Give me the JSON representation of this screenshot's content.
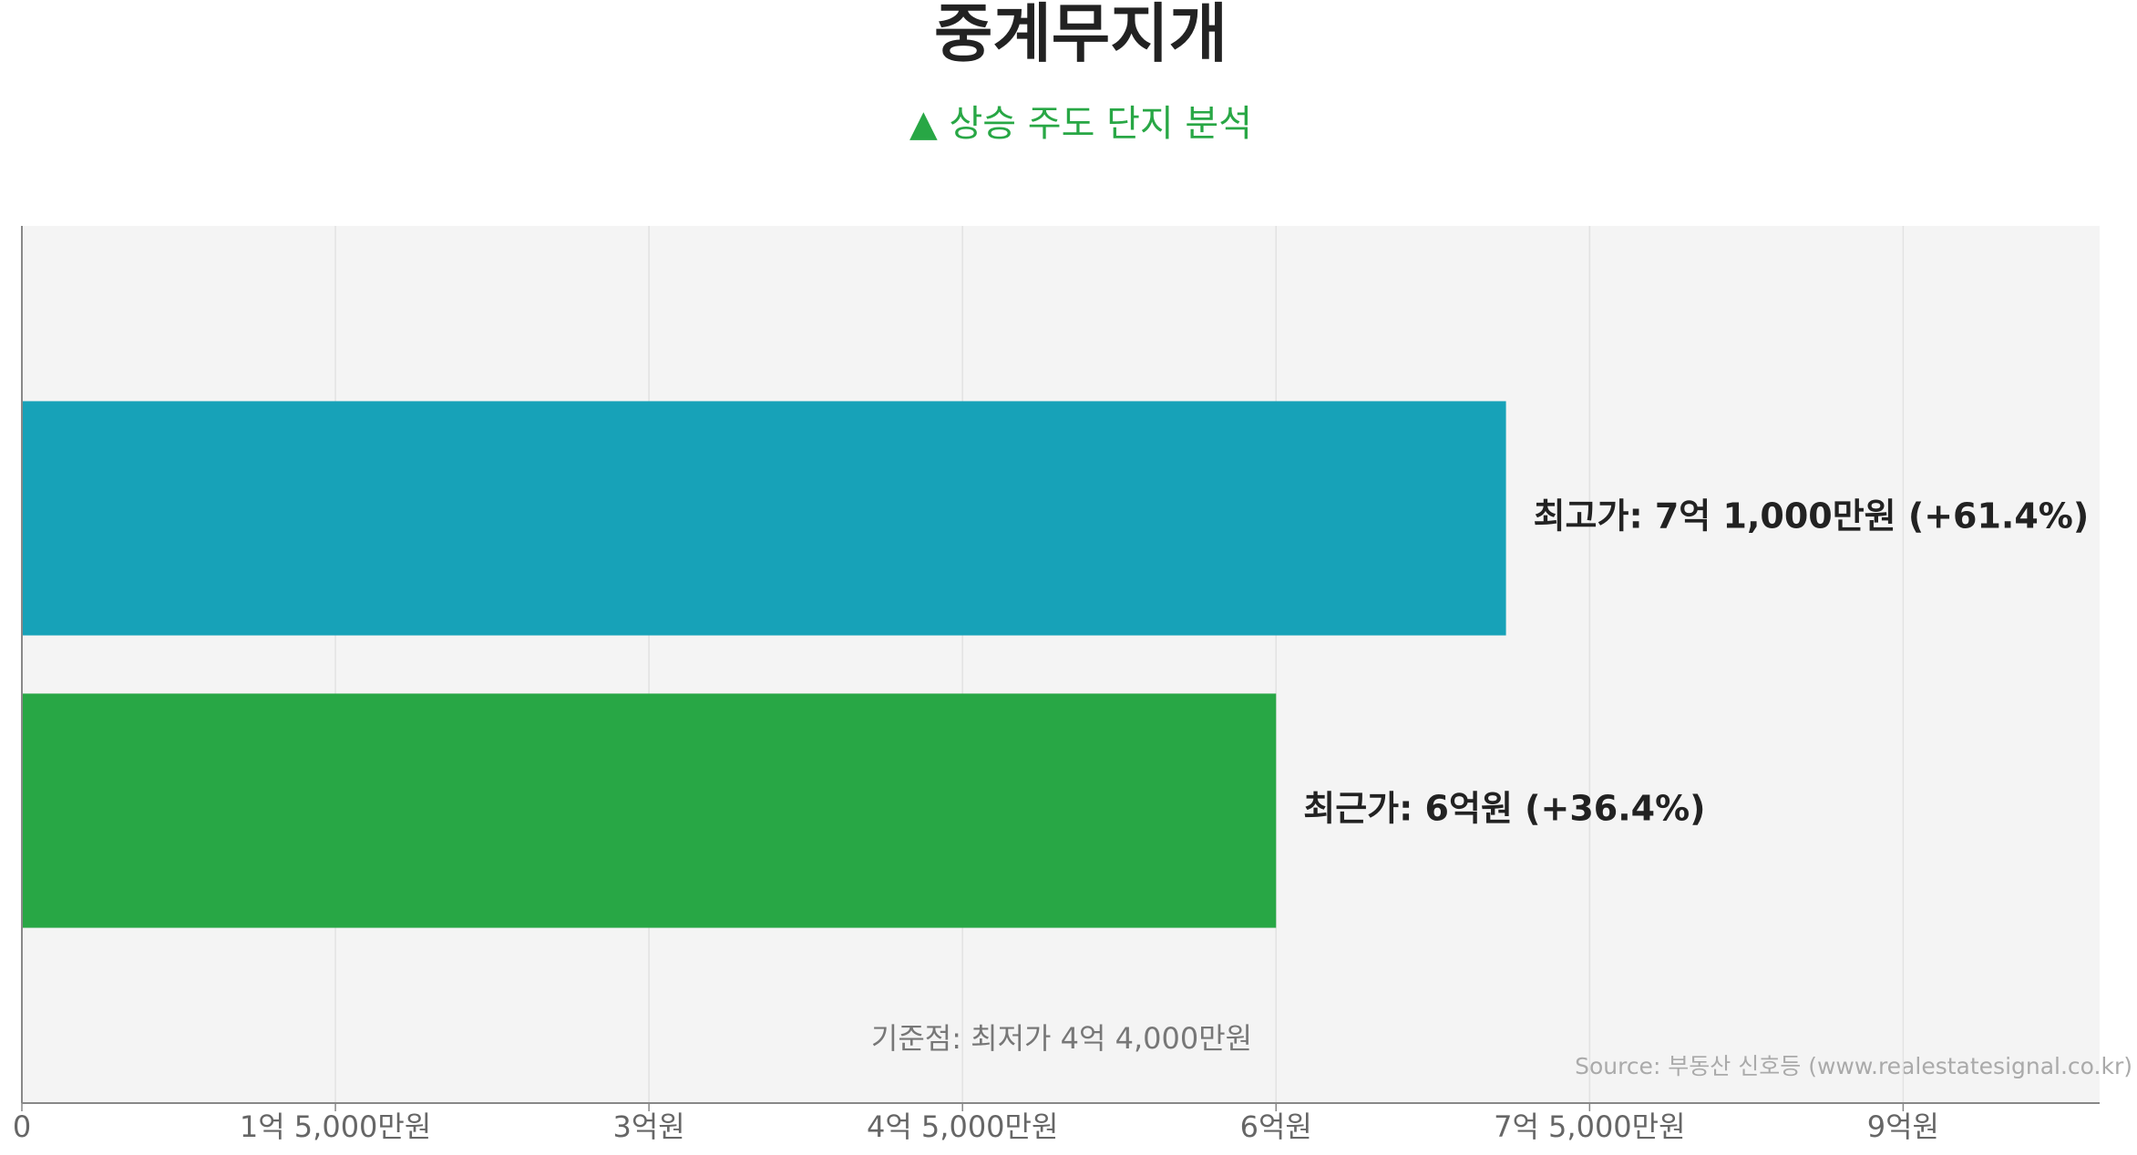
{
  "chart_data": {
    "type": "bar",
    "orientation": "horizontal",
    "title": "중계무지개",
    "subtitle": "▲ 상승 주도 단지 분석",
    "categories": [
      null,
      null
    ],
    "values": [
      710000000,
      600000000
    ],
    "value_labels": [
      "최고가: 7억 1,000만원 (+61.4%)",
      "최근가: 6억원 (+36.4%)"
    ],
    "colors": [
      "#17a2b8",
      "#28a745"
    ],
    "xlim": [
      0,
      994000000
    ],
    "xticks": [
      0,
      {
        "value": 150000000,
        "label": "1억 5,000만원"
      },
      {
        "value": 300000000,
        "label": "3억원"
      },
      {
        "value": 450000000,
        "label": "4억 5,000만원"
      },
      {
        "value": 600000000,
        "label": "6억원"
      },
      {
        "value": 750000000,
        "label": "7억 5,000만원"
      },
      {
        "value": 900000000,
        "label": "9억원"
      }
    ],
    "grid": true,
    "annotation": "기준점: 최저가 4억 4,000만원",
    "source": "Source: 부동산 신호등 (www.realestatesignal.co.kr)"
  }
}
